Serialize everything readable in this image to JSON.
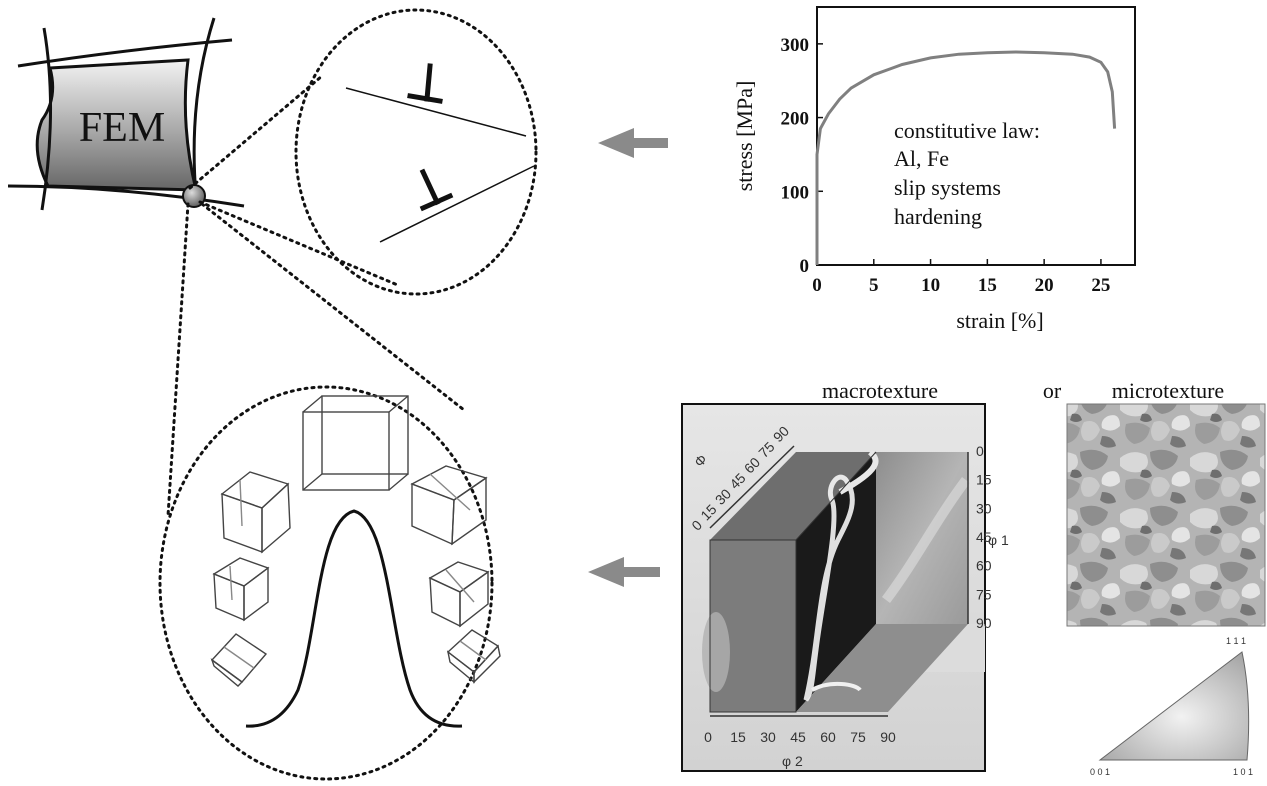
{
  "fem": {
    "label": "FEM"
  },
  "chart_data": {
    "type": "line",
    "xlabel": "strain  [%]",
    "ylabel": "stress [MPa]",
    "xlim": [
      0,
      28
    ],
    "ylim": [
      0,
      350
    ],
    "xticks": [
      0,
      5,
      10,
      15,
      20,
      25
    ],
    "yticks": [
      0,
      100,
      200,
      300
    ],
    "grid": false,
    "x": [
      0,
      0.3,
      1,
      2,
      3,
      5,
      7.5,
      10,
      12.5,
      15,
      17.5,
      20,
      22.5,
      24,
      25,
      25.6,
      26,
      26.2
    ],
    "y": [
      150,
      185,
      205,
      225,
      240,
      258,
      272,
      281,
      286,
      288,
      289,
      288,
      286,
      282,
      275,
      262,
      235,
      185
    ],
    "annotations": [
      "constitutive law:",
      "Al, Fe",
      "slip systems",
      "hardening"
    ]
  },
  "texture": {
    "macro_title": "macrotexture",
    "or_label": "or",
    "micro_title": "microtexture",
    "phi_label": "Φ",
    "phi_ticks": [
      "0",
      "15",
      "30",
      "45",
      "60",
      "75",
      "90"
    ],
    "phi1_label": "φ 1",
    "phi1_ticks": [
      "0",
      "15",
      "30",
      "45",
      "60",
      "75",
      "90"
    ],
    "phi2_label": "φ 2",
    "phi2_ticks": [
      "0",
      "15",
      "30",
      "45",
      "60",
      "75",
      "90"
    ],
    "ipf_labels": {
      "top": "1 1 1",
      "left": "0 0 1",
      "right": "1 0 1"
    }
  },
  "colors": {
    "arrow": "#8a8a8a",
    "curve": "#808080",
    "dots": "#111111"
  }
}
